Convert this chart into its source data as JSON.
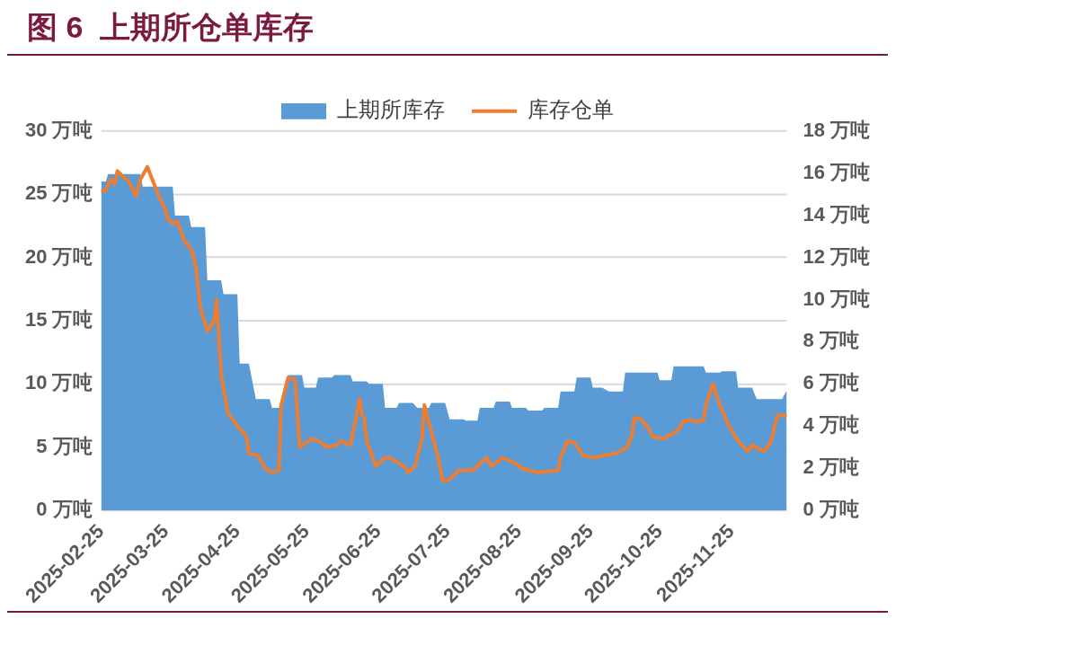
{
  "chart_data": {
    "type": "area",
    "title": "图 6  上期所仓单库存",
    "legend": "top",
    "grid": "y",
    "xlim": [
      "2025-02-25",
      "2025-12-19"
    ],
    "xticks": [
      "2025-02-25",
      "2025-03-25",
      "2025-04-25",
      "2025-05-25",
      "2025-06-25",
      "2025-07-25",
      "2025-08-25",
      "2025-09-25",
      "2025-10-25",
      "2025-11-25"
    ],
    "ylim": [
      0,
      30
    ],
    "yticks": [
      {
        "value": 0,
        "label": "0 万吨"
      },
      {
        "value": 5,
        "label": "5 万吨"
      },
      {
        "value": 10,
        "label": "10 万吨"
      },
      {
        "value": 15,
        "label": "15 万吨"
      },
      {
        "value": 20,
        "label": "20 万吨"
      },
      {
        "value": 25,
        "label": "25 万吨"
      },
      {
        "value": 30,
        "label": "30 万吨"
      }
    ],
    "y2lim": [
      0,
      18
    ],
    "y2ticks": [
      {
        "value": 0,
        "label": "0 万吨"
      },
      {
        "value": 2,
        "label": "2 万吨"
      },
      {
        "value": 4,
        "label": "4 万吨"
      },
      {
        "value": 6,
        "label": "6 万吨"
      },
      {
        "value": 8,
        "label": "8 万吨"
      },
      {
        "value": 10,
        "label": "10 万吨"
      },
      {
        "value": 12,
        "label": "12 万吨"
      },
      {
        "value": 14,
        "label": "14 万吨"
      },
      {
        "value": 16,
        "label": "16 万吨"
      },
      {
        "value": 18,
        "label": "18 万吨"
      }
    ],
    "series": [
      {
        "name": "上期所库存",
        "color": "#5b9bd5",
        "x": [
          "2025-02-25",
          "2025-02-27",
          "2025-02-28",
          "2025-03-14",
          "2025-03-15",
          "2025-03-28",
          "2025-03-29",
          "2025-04-04",
          "2025-04-05",
          "2025-04-11",
          "2025-04-12",
          "2025-04-18",
          "2025-04-19",
          "2025-04-25",
          "2025-04-26",
          "2025-04-30",
          "2025-05-03",
          "2025-05-09",
          "2025-05-10",
          "2025-05-13",
          "2025-05-17",
          "2025-05-23",
          "2025-05-24",
          "2025-05-29",
          "2025-05-30",
          "2025-06-05",
          "2025-06-06",
          "2025-06-13",
          "2025-06-14",
          "2025-06-20",
          "2025-06-21",
          "2025-06-27",
          "2025-06-28",
          "2025-07-03",
          "2025-07-04",
          "2025-07-10",
          "2025-07-12",
          "2025-07-17",
          "2025-07-18",
          "2025-07-24",
          "2025-07-26",
          "2025-08-01",
          "2025-08-02",
          "2025-08-07",
          "2025-08-08",
          "2025-08-14",
          "2025-08-15",
          "2025-08-21",
          "2025-08-22",
          "2025-08-28",
          "2025-08-29",
          "2025-09-04",
          "2025-09-05",
          "2025-09-11",
          "2025-09-12",
          "2025-09-18",
          "2025-09-19",
          "2025-09-25",
          "2025-09-26",
          "2025-09-30",
          "2025-10-03",
          "2025-10-09",
          "2025-10-10",
          "2025-10-24",
          "2025-10-25",
          "2025-10-30",
          "2025-10-31",
          "2025-11-13",
          "2025-11-14",
          "2025-11-20",
          "2025-11-21",
          "2025-11-27",
          "2025-11-28",
          "2025-12-04",
          "2025-12-06",
          "2025-12-17",
          "2025-12-19"
        ],
        "values": [
          26.0,
          26.0,
          26.6,
          26.6,
          25.6,
          25.6,
          23.3,
          23.3,
          22.4,
          22.4,
          18.2,
          18.2,
          17.1,
          17.1,
          11.6,
          11.6,
          8.8,
          8.8,
          8.1,
          8.1,
          10.7,
          10.7,
          9.7,
          9.7,
          10.5,
          10.5,
          10.7,
          10.7,
          10.2,
          10.2,
          10.0,
          10.0,
          8.1,
          8.1,
          8.5,
          8.5,
          8.1,
          8.1,
          8.5,
          8.5,
          7.2,
          7.2,
          7.1,
          7.1,
          8.1,
          8.1,
          8.6,
          8.6,
          8.1,
          8.1,
          7.9,
          7.9,
          8.1,
          8.1,
          9.4,
          9.4,
          10.5,
          10.5,
          9.7,
          9.7,
          9.4,
          9.4,
          10.9,
          10.9,
          10.3,
          10.3,
          11.4,
          11.4,
          10.9,
          10.9,
          11.0,
          11.0,
          9.7,
          9.7,
          8.8,
          8.8,
          9.5
        ]
      },
      {
        "name": "库存仓单",
        "type": "line",
        "axis": "y2",
        "color": "#ed7d31",
        "x": [
          "2025-02-25",
          "2025-02-27",
          "2025-03-01",
          "2025-03-03",
          "2025-03-04",
          "2025-03-07",
          "2025-03-09",
          "2025-03-12",
          "2025-03-14",
          "2025-03-17",
          "2025-03-22",
          "2025-03-24",
          "2025-03-26",
          "2025-03-28",
          "2025-03-30",
          "2025-04-02",
          "2025-04-05",
          "2025-04-07",
          "2025-04-09",
          "2025-04-12",
          "2025-04-15",
          "2025-04-16",
          "2025-04-18",
          "2025-04-21",
          "2025-04-25",
          "2025-04-29",
          "2025-04-30",
          "2025-05-04",
          "2025-05-07",
          "2025-05-10",
          "2025-05-13",
          "2025-05-14",
          "2025-05-17",
          "2025-05-20",
          "2025-05-21",
          "2025-05-22",
          "2025-05-27",
          "2025-05-30",
          "2025-06-03",
          "2025-06-07",
          "2025-06-09",
          "2025-06-13",
          "2025-06-17",
          "2025-06-18",
          "2025-06-19",
          "2025-06-20",
          "2025-06-24",
          "2025-06-28",
          "2025-06-30",
          "2025-07-06",
          "2025-07-08",
          "2025-07-11",
          "2025-07-14",
          "2025-07-15",
          "2025-07-21",
          "2025-07-23",
          "2025-07-25",
          "2025-07-30",
          "2025-08-01",
          "2025-08-05",
          "2025-08-11",
          "2025-08-13",
          "2025-08-18",
          "2025-08-24",
          "2025-08-26",
          "2025-09-02",
          "2025-09-11",
          "2025-09-12",
          "2025-09-15",
          "2025-09-18",
          "2025-09-22",
          "2025-09-27",
          "2025-09-30",
          "2025-10-06",
          "2025-10-11",
          "2025-10-13",
          "2025-10-14",
          "2025-10-17",
          "2025-10-20",
          "2025-10-22",
          "2025-10-27",
          "2025-10-31",
          "2025-11-02",
          "2025-11-04",
          "2025-11-07",
          "2025-11-10",
          "2025-11-13",
          "2025-11-14",
          "2025-11-17",
          "2025-11-20",
          "2025-11-24",
          "2025-11-28",
          "2025-12-02",
          "2025-12-04",
          "2025-12-09",
          "2025-12-12",
          "2025-12-15",
          "2025-12-19"
        ],
        "values": [
          15.15,
          15.2,
          15.7,
          15.5,
          16.1,
          15.8,
          15.6,
          14.9,
          15.7,
          16.3,
          14.9,
          14.5,
          13.8,
          13.6,
          13.7,
          12.8,
          12.4,
          11.6,
          9.6,
          8.5,
          9.0,
          10.0,
          6.4,
          4.6,
          4.0,
          3.5,
          2.7,
          2.6,
          2.0,
          1.8,
          1.9,
          5.0,
          6.3,
          6.2,
          4.6,
          3.0,
          3.4,
          3.3,
          3.0,
          3.1,
          3.3,
          3.1,
          5.3,
          4.5,
          4.4,
          3.3,
          2.1,
          2.5,
          2.5,
          2.1,
          1.8,
          2.1,
          3.4,
          5.0,
          2.5,
          1.4,
          1.4,
          1.9,
          1.9,
          1.9,
          2.5,
          2.1,
          2.5,
          2.2,
          2.0,
          1.8,
          1.9,
          2.5,
          3.3,
          3.2,
          2.6,
          2.5,
          2.6,
          2.7,
          3.0,
          3.6,
          4.4,
          4.3,
          3.9,
          3.5,
          3.4,
          3.7,
          3.8,
          4.2,
          4.3,
          4.2,
          4.3,
          5.0,
          6.0,
          5.0,
          4.0,
          3.3,
          2.8,
          3.1,
          2.8,
          3.2,
          4.5,
          4.5
        ]
      }
    ]
  }
}
